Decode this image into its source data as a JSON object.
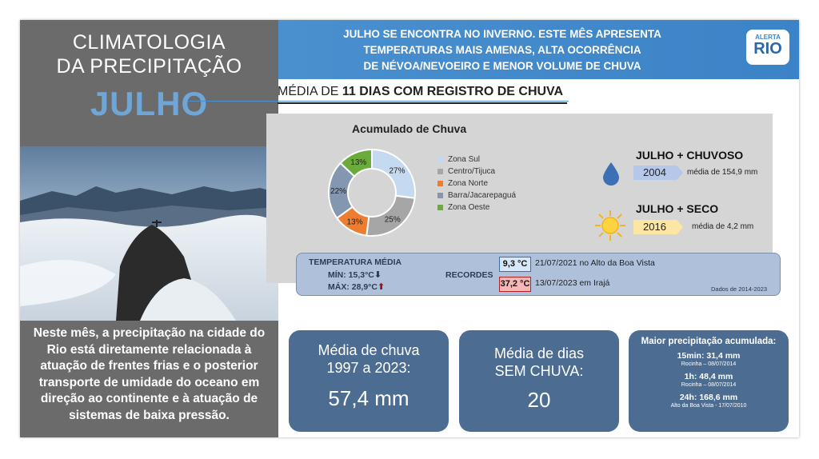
{
  "title": {
    "line1": "CLIMATOLOGIA",
    "line2": "DA PRECIPITAÇÃO",
    "month": "JULHO"
  },
  "header": {
    "line1": "JULHO SE ENCONTRA NO INVERNO. ESTE MÊS APRESENTA",
    "line2": "TEMPERATURAS MAIS AMENAS, ALTA OCORRÊNCIA",
    "line3": "DE NÉVOA/NEVOEIRO E MENOR VOLUME DE CHUVA"
  },
  "logo": {
    "top": "ALERTA",
    "bottom": "RIO"
  },
  "rain_days": {
    "prefix": "MÉDIA DE ",
    "bold": "11 DIAS COM REGISTRO DE CHUVA"
  },
  "description": "Neste mês, a precipitação na cidade do Rio está diretamente relacionada à atuação de frentes frias e o posterior transporte de umidade do oceano em direção ao continente e à atuação de sistemas de baixa pressão.",
  "chart_data": {
    "type": "pie",
    "title": "Acumulado de Chuva",
    "categories": [
      "Zona Sul",
      "Centro/Tijuca",
      "Zona Norte",
      "Barra/Jacarepaguá",
      "Zona Oeste"
    ],
    "values": [
      27,
      25,
      13,
      22,
      13
    ],
    "labels": [
      "27%",
      "25%",
      "13%",
      "22%",
      "13%"
    ],
    "colors": [
      "#c5d9f0",
      "#a6a6a6",
      "#ed7d31",
      "#8497b0",
      "#6aab3c"
    ],
    "donut": true,
    "legend_position": "right"
  },
  "extremes": {
    "wet": {
      "title": "JULHO + CHUVOSO",
      "year": "2004",
      "note": "média de 154,9 mm"
    },
    "dry": {
      "title": "JULHO + SECO",
      "year": "2016",
      "note": "média de 4,2 mm"
    }
  },
  "temperature": {
    "label": "TEMPERATURA MÉDIA",
    "min": "MÍN: 15,3°C",
    "max": "MÁX: 28,9°C",
    "records_label": "RECORDES",
    "record_min": {
      "value": "9,3 °C",
      "text": "21/07/2021 no Alto da Boa Vista"
    },
    "record_max": {
      "value": "37,2 °C",
      "text": "13/07/2023 em Irajá"
    },
    "source": "Dados de 2014-2023"
  },
  "cards": {
    "rain_avg": {
      "label1": "Média de chuva",
      "label2": "1997 a 2023:",
      "value": "57,4 mm"
    },
    "dry_days": {
      "label1": "Média de dias",
      "label2": "SEM CHUVA:",
      "value": "20"
    },
    "max_precip": {
      "title": "Maior precipitação acumulada:",
      "items": [
        {
          "value": "15min: 31,4 mm",
          "where": "Rocinha – 08/07/2014"
        },
        {
          "value": "1h: 48,4 mm",
          "where": "Rocinha – 08/07/2014"
        },
        {
          "value": "24h: 168,6 mm",
          "where": "Alto da Boa Vista - 17/07/2010"
        }
      ]
    }
  }
}
